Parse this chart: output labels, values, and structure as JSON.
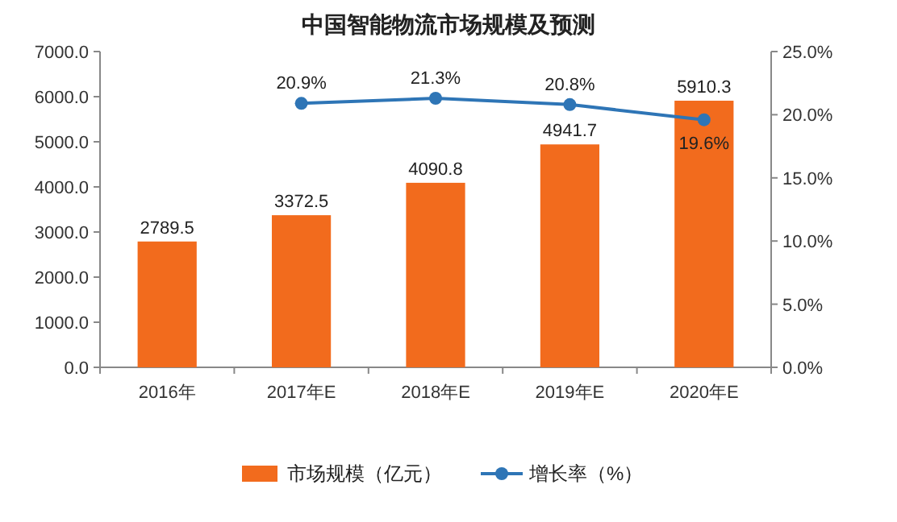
{
  "chart_data": {
    "type": "bar",
    "title": "中国智能物流市场规模及预测",
    "categories": [
      "2016年",
      "2017年E",
      "2018年E",
      "2019年E",
      "2020年E"
    ],
    "series": [
      {
        "name": "市场规模（亿元）",
        "color": "#f26b1d",
        "values": [
          2789.5,
          3372.5,
          4090.8,
          4941.7,
          5910.3
        ],
        "value_labels": [
          "2789.5",
          "3372.5",
          "4090.8",
          "4941.7",
          "5910.3"
        ]
      },
      {
        "name": "增长率（%）",
        "type": "line",
        "axis": "y2",
        "color": "#2e75b6",
        "marker": "circle",
        "values": [
          null,
          20.9,
          21.3,
          20.8,
          19.6
        ],
        "value_labels": [
          null,
          "20.9%",
          "21.3%",
          "20.8%",
          "19.6%"
        ]
      }
    ],
    "ylim": [
      0,
      7000
    ],
    "yticks": [
      {
        "value": 0,
        "label": "0.0"
      },
      {
        "value": 1000,
        "label": "1000.0"
      },
      {
        "value": 2000,
        "label": "2000.0"
      },
      {
        "value": 3000,
        "label": "3000.0"
      },
      {
        "value": 4000,
        "label": "4000.0"
      },
      {
        "value": 5000,
        "label": "5000.0"
      },
      {
        "value": 6000,
        "label": "6000.0"
      },
      {
        "value": 7000,
        "label": "7000.0"
      }
    ],
    "y2lim": [
      0,
      25
    ],
    "y2ticks": [
      {
        "value": 0,
        "label": "0.0%"
      },
      {
        "value": 5,
        "label": "5.0%"
      },
      {
        "value": 10,
        "label": "10.0%"
      },
      {
        "value": 15,
        "label": "15.0%"
      },
      {
        "value": 20,
        "label": "20.0%"
      },
      {
        "value": 25,
        "label": "25.0%"
      }
    ],
    "grid": false,
    "legend": "bottom"
  }
}
